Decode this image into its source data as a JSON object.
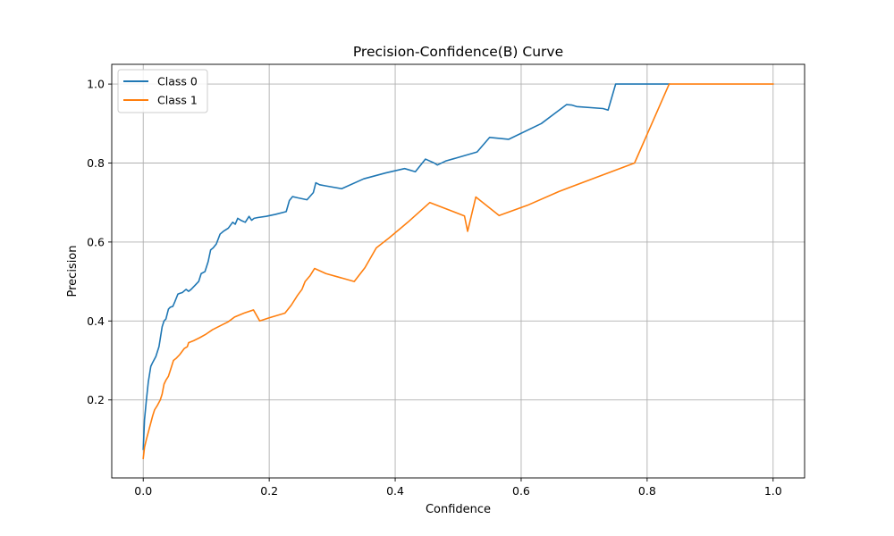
{
  "chart_data": {
    "type": "line",
    "title": "Precision-Confidence(B) Curve",
    "xlabel": "Confidence",
    "ylabel": "Precision",
    "xlim": [
      -0.05,
      1.05
    ],
    "ylim": [
      0.0025,
      1.05
    ],
    "xticks": [
      0.0,
      0.2,
      0.4,
      0.6,
      0.8,
      1.0
    ],
    "xtick_labels": [
      "0.0",
      "0.2",
      "0.4",
      "0.6",
      "0.8",
      "1.0"
    ],
    "yticks": [
      0.2,
      0.4,
      0.6,
      0.8,
      1.0
    ],
    "ytick_labels": [
      "0.2",
      "0.4",
      "0.6",
      "0.8",
      "1.0"
    ],
    "grid": true,
    "legend_position": "top-left",
    "series": [
      {
        "name": "Class 0",
        "color": "#1f77b4",
        "x": [
          0.0,
          0.002,
          0.005,
          0.008,
          0.012,
          0.015,
          0.02,
          0.025,
          0.03,
          0.033,
          0.036,
          0.04,
          0.043,
          0.047,
          0.05,
          0.055,
          0.058,
          0.062,
          0.068,
          0.072,
          0.076,
          0.082,
          0.088,
          0.092,
          0.098,
          0.103,
          0.107,
          0.111,
          0.116,
          0.122,
          0.128,
          0.135,
          0.142,
          0.146,
          0.15,
          0.155,
          0.162,
          0.168,
          0.172,
          0.176,
          0.182,
          0.195,
          0.21,
          0.227,
          0.232,
          0.237,
          0.245,
          0.26,
          0.27,
          0.274,
          0.28,
          0.29,
          0.315,
          0.35,
          0.385,
          0.415,
          0.432,
          0.448,
          0.462,
          0.467,
          0.48,
          0.53,
          0.55,
          0.58,
          0.632,
          0.672,
          0.68,
          0.688,
          0.73,
          0.738,
          0.75,
          0.8,
          0.835
        ],
        "values": [
          0.075,
          0.15,
          0.2,
          0.245,
          0.285,
          0.295,
          0.31,
          0.335,
          0.385,
          0.4,
          0.405,
          0.43,
          0.435,
          0.437,
          0.448,
          0.468,
          0.47,
          0.472,
          0.48,
          0.475,
          0.48,
          0.49,
          0.5,
          0.52,
          0.525,
          0.55,
          0.58,
          0.585,
          0.595,
          0.62,
          0.628,
          0.635,
          0.65,
          0.645,
          0.66,
          0.655,
          0.65,
          0.665,
          0.655,
          0.66,
          0.662,
          0.665,
          0.67,
          0.677,
          0.705,
          0.715,
          0.712,
          0.707,
          0.725,
          0.75,
          0.745,
          0.742,
          0.735,
          0.76,
          0.775,
          0.786,
          0.778,
          0.81,
          0.8,
          0.795,
          0.805,
          0.828,
          0.865,
          0.86,
          0.9,
          0.948,
          0.947,
          0.943,
          0.938,
          0.934,
          1.0,
          1.0,
          1.0
        ]
      },
      {
        "name": "Class 1",
        "color": "#ff7f0e",
        "x": [
          0.0,
          0.002,
          0.005,
          0.01,
          0.015,
          0.018,
          0.022,
          0.027,
          0.03,
          0.033,
          0.036,
          0.04,
          0.044,
          0.048,
          0.052,
          0.058,
          0.065,
          0.07,
          0.072,
          0.08,
          0.09,
          0.1,
          0.11,
          0.125,
          0.135,
          0.145,
          0.16,
          0.175,
          0.185,
          0.2,
          0.225,
          0.235,
          0.245,
          0.252,
          0.257,
          0.265,
          0.272,
          0.29,
          0.335,
          0.352,
          0.37,
          0.39,
          0.42,
          0.455,
          0.51,
          0.515,
          0.528,
          0.565,
          0.61,
          0.66,
          0.72,
          0.78,
          0.835,
          1.0
        ],
        "values": [
          0.052,
          0.08,
          0.1,
          0.13,
          0.16,
          0.175,
          0.185,
          0.2,
          0.215,
          0.24,
          0.25,
          0.26,
          0.28,
          0.3,
          0.305,
          0.315,
          0.33,
          0.335,
          0.345,
          0.35,
          0.358,
          0.367,
          0.378,
          0.39,
          0.398,
          0.41,
          0.42,
          0.428,
          0.4,
          0.408,
          0.42,
          0.44,
          0.465,
          0.48,
          0.5,
          0.515,
          0.533,
          0.52,
          0.5,
          0.535,
          0.585,
          0.61,
          0.65,
          0.7,
          0.666,
          0.627,
          0.714,
          0.667,
          0.693,
          0.728,
          0.764,
          0.8,
          1.0,
          1.0
        ]
      }
    ]
  }
}
